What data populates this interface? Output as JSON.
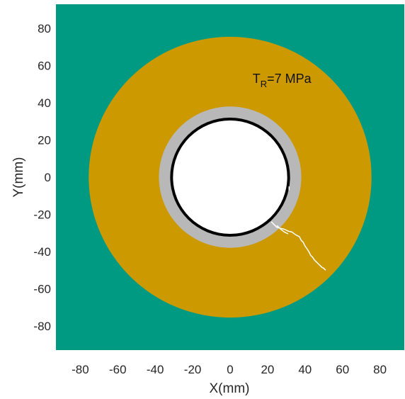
{
  "chart_data": {
    "type": "heatmap",
    "xlabel": "X(mm)",
    "ylabel": "Y(mm)",
    "xlim": [
      -93,
      93
    ],
    "ylim": [
      -93,
      93
    ],
    "xticks": [
      -80,
      -60,
      -40,
      -20,
      0,
      20,
      40,
      60,
      80
    ],
    "yticks": [
      80,
      60,
      40,
      20,
      0,
      -20,
      -40,
      -60,
      -80
    ],
    "grid": false,
    "annotation": {
      "base": "T",
      "subscript": "R",
      "rest": "=7 MPa",
      "x": 12,
      "y": 53
    },
    "regions": [
      {
        "name": "outer",
        "color": "#009A82"
      },
      {
        "name": "ring",
        "radius": 75.5,
        "color": "#CC9900"
      },
      {
        "name": "liner",
        "radius": 38,
        "color": "#B8B8B8"
      },
      {
        "name": "interface",
        "radius": 32,
        "color": "#000000"
      },
      {
        "name": "hole",
        "radius": 30.5,
        "color": "#FFFFFF"
      }
    ],
    "cracks": [
      {
        "color": "#FFFFFF",
        "points": [
          [
            22,
            -24
          ],
          [
            24,
            -26
          ],
          [
            25,
            -27
          ],
          [
            27,
            -27.5
          ],
          [
            29,
            -28
          ],
          [
            31,
            -29
          ],
          [
            33,
            -29.5
          ],
          [
            35,
            -31
          ],
          [
            37,
            -32
          ],
          [
            38,
            -34
          ],
          [
            39,
            -35
          ],
          [
            40,
            -37
          ],
          [
            41,
            -38.5
          ],
          [
            42,
            -40
          ],
          [
            43,
            -42
          ],
          [
            44,
            -43
          ],
          [
            45,
            -44.5
          ],
          [
            46,
            -45.5
          ],
          [
            47,
            -46.5
          ],
          [
            48,
            -47.5
          ],
          [
            49,
            -48.5
          ],
          [
            50,
            -49
          ],
          [
            51,
            -50
          ]
        ]
      },
      {
        "color": "#FFFFFF",
        "points": [
          [
            25,
            -26
          ],
          [
            27,
            -28
          ],
          [
            29,
            -29.5
          ],
          [
            31,
            -30.5
          ]
        ]
      },
      {
        "color": "#FFFFFF",
        "points": [
          [
            31.5,
            -5
          ],
          [
            31.5,
            -7
          ]
        ]
      }
    ]
  }
}
